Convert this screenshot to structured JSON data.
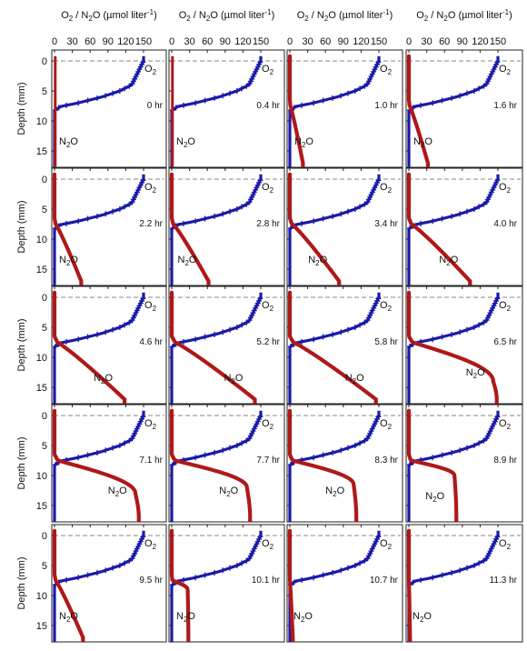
{
  "chart_data": {
    "type": "line",
    "layout": {
      "rows": 5,
      "columns": 4
    },
    "x_axis_title_parts": {
      "pre": "O",
      "sub1": "2",
      "mid": " / N",
      "sub2": "2",
      "post": "O (µmol liter",
      "sup": "-1",
      "close": ")"
    },
    "ylabel": "Depth (mm)",
    "xlim": [
      0,
      160
    ],
    "ylim": [
      -1.5,
      18
    ],
    "x_ticks": [
      0,
      30,
      60,
      90,
      120,
      150
    ],
    "y_ticks": [
      0,
      5,
      10,
      15
    ],
    "y_inverted": true,
    "reference_line_depth": 0,
    "series_labels": {
      "o2": {
        "base": "O",
        "sub": "2"
      },
      "n2o": {
        "base": "N",
        "sub": "2",
        "tail": "O"
      }
    },
    "colors": {
      "o2": "#1a1aa8",
      "n2o": "#b01818",
      "reference_line": "#888888"
    },
    "panels": [
      {
        "time": "0 hr",
        "n2o_peak": 0,
        "n2o_turn": null
      },
      {
        "time": "0.4 hr",
        "n2o_peak": 0,
        "n2o_turn": null
      },
      {
        "time": "1.0 hr",
        "n2o_peak": 22,
        "n2o_turn": null
      },
      {
        "time": "1.6 hr",
        "n2o_peak": 32,
        "n2o_turn": null
      },
      {
        "time": "2.2 hr",
        "n2o_peak": 45,
        "n2o_turn": null
      },
      {
        "time": "2.8 hr",
        "n2o_peak": 62,
        "n2o_turn": null
      },
      {
        "time": "3.4 hr",
        "n2o_peak": 83,
        "n2o_turn": null
      },
      {
        "time": "4.0 hr",
        "n2o_peak": 103,
        "n2o_turn": null
      },
      {
        "time": "4.6 hr",
        "n2o_peak": 118,
        "n2o_turn": null
      },
      {
        "time": "5.2 hr",
        "n2o_peak": 140,
        "n2o_turn": null
      },
      {
        "time": "5.8 hr",
        "n2o_peak": 145,
        "n2o_turn": null
      },
      {
        "time": "6.5 hr",
        "n2o_peak": 148,
        "n2o_turn": 14
      },
      {
        "time": "7.1 hr",
        "n2o_peak": 142,
        "n2o_turn": 13
      },
      {
        "time": "7.7 hr",
        "n2o_peak": 132,
        "n2o_turn": 12
      },
      {
        "time": "8.3 hr",
        "n2o_peak": 112,
        "n2o_turn": 11.5
      },
      {
        "time": "8.9 hr",
        "n2o_peak": 80,
        "n2o_turn": 10
      },
      {
        "time": "9.5 hr",
        "n2o_peak": 48,
        "n2o_turn": null
      },
      {
        "time": "10.1 hr",
        "n2o_peak": 28,
        "n2o_turn": 9
      },
      {
        "time": "10.7 hr",
        "n2o_peak": 5,
        "n2o_turn": null
      },
      {
        "time": "11.3 hr",
        "n2o_peak": 2,
        "n2o_turn": null
      }
    ]
  }
}
